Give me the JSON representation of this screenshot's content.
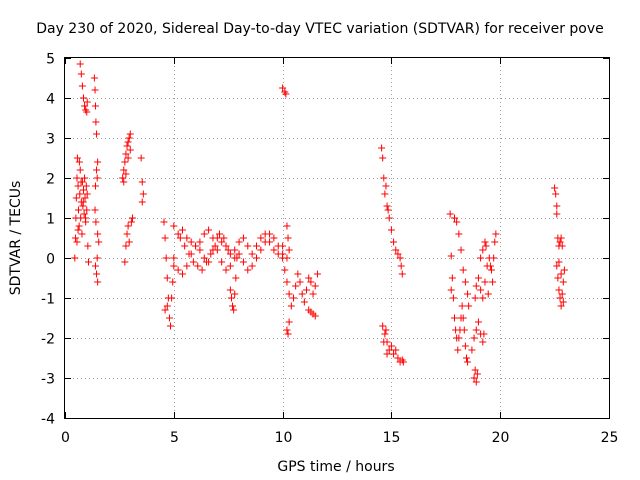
{
  "chart_data": {
    "type": "scatter",
    "title": "Day 230 of 2020, Sidereal Day-to-day VTEC variation (SDTVAR) for receiver pove",
    "xlabel": "GPS time / hours",
    "ylabel": "SDTVAR / TECUs",
    "xlim": [
      0,
      25
    ],
    "ylim": [
      -4,
      5
    ],
    "xticks": [
      0,
      5,
      10,
      15,
      20,
      25
    ],
    "yticks": [
      -4,
      -3,
      -2,
      -1,
      0,
      1,
      2,
      3,
      4,
      5
    ],
    "xtick_labels": [
      "0",
      "5",
      "10",
      "15",
      "20",
      "25"
    ],
    "ytick_labels": [
      "-4",
      "-3",
      "-2",
      "-1",
      "0",
      "1",
      "2",
      "3",
      "4",
      "5"
    ],
    "grid": true,
    "marker": "+",
    "marker_color": "#ff0000",
    "series": [
      {
        "name": "SDTVAR",
        "points": [
          [
            0.45,
            0.0
          ],
          [
            0.48,
            0.5
          ],
          [
            0.5,
            1.0
          ],
          [
            0.52,
            1.5
          ],
          [
            0.55,
            2.0
          ],
          [
            0.57,
            2.5
          ],
          [
            0.6,
            1.8
          ],
          [
            0.62,
            1.2
          ],
          [
            0.65,
            0.8
          ],
          [
            0.68,
            1.6
          ],
          [
            0.7,
            2.2
          ],
          [
            0.72,
            1.0
          ],
          [
            0.75,
            1.4
          ],
          [
            0.78,
            0.6
          ],
          [
            0.8,
            1.9
          ],
          [
            0.82,
            1.3
          ],
          [
            0.85,
            1.7
          ],
          [
            0.88,
            1.1
          ],
          [
            0.9,
            2.0
          ],
          [
            0.92,
            1.5
          ],
          [
            0.95,
            0.9
          ],
          [
            0.98,
            1.8
          ],
          [
            1.0,
            1.2
          ],
          [
            1.02,
            1.6
          ],
          [
            1.05,
            0.3
          ],
          [
            1.08,
            -0.1
          ],
          [
            0.55,
            0.4
          ],
          [
            0.6,
            0.7
          ],
          [
            0.66,
            2.4
          ],
          [
            0.74,
            1.9
          ],
          [
            0.84,
            1.4
          ],
          [
            0.94,
            1.0
          ],
          [
            0.7,
            4.85
          ],
          [
            0.75,
            4.6
          ],
          [
            0.8,
            4.3
          ],
          [
            0.85,
            4.0
          ],
          [
            0.9,
            3.8
          ],
          [
            0.95,
            3.7
          ],
          [
            1.0,
            3.65
          ],
          [
            1.02,
            3.9
          ],
          [
            1.35,
            4.5
          ],
          [
            1.38,
            4.2
          ],
          [
            1.4,
            3.8
          ],
          [
            1.42,
            3.4
          ],
          [
            1.45,
            3.1
          ],
          [
            1.5,
            2.4
          ],
          [
            1.45,
            2.2
          ],
          [
            1.48,
            2.0
          ],
          [
            1.4,
            1.8
          ],
          [
            1.38,
            1.2
          ],
          [
            1.42,
            0.9
          ],
          [
            1.5,
            0.6
          ],
          [
            1.55,
            0.4
          ],
          [
            1.4,
            -0.2
          ],
          [
            1.45,
            -0.4
          ],
          [
            1.5,
            -0.6
          ],
          [
            1.48,
            0.0
          ],
          [
            2.65,
            2.0
          ],
          [
            2.7,
            2.2
          ],
          [
            2.75,
            2.4
          ],
          [
            2.8,
            2.6
          ],
          [
            2.85,
            2.8
          ],
          [
            2.9,
            2.9
          ],
          [
            2.95,
            3.0
          ],
          [
            3.0,
            3.1
          ],
          [
            2.7,
            1.9
          ],
          [
            2.8,
            2.1
          ],
          [
            2.9,
            2.5
          ],
          [
            3.0,
            2.7
          ],
          [
            2.75,
            -0.1
          ],
          [
            2.8,
            0.3
          ],
          [
            2.85,
            0.6
          ],
          [
            2.9,
            0.8
          ],
          [
            2.95,
            0.4
          ],
          [
            3.1,
            1.0
          ],
          [
            3.05,
            0.9
          ],
          [
            3.5,
            2.5
          ],
          [
            3.55,
            1.9
          ],
          [
            3.6,
            1.6
          ],
          [
            3.55,
            1.4
          ],
          [
            10.0,
            4.25
          ],
          [
            10.1,
            4.15
          ],
          [
            10.15,
            4.1
          ],
          [
            4.55,
            0.9
          ],
          [
            4.6,
            0.5
          ],
          [
            4.65,
            0.0
          ],
          [
            4.7,
            -0.5
          ],
          [
            4.75,
            -1.0
          ],
          [
            4.8,
            -1.5
          ],
          [
            4.85,
            -1.7
          ],
          [
            4.9,
            -1.0
          ],
          [
            4.95,
            -0.6
          ],
          [
            5.0,
            -0.2
          ],
          [
            4.6,
            -1.3
          ],
          [
            4.7,
            -1.2
          ],
          [
            5.0,
            0.8
          ],
          [
            5.2,
            0.6
          ],
          [
            5.4,
            0.7
          ],
          [
            5.6,
            0.5
          ],
          [
            5.8,
            0.4
          ],
          [
            6.0,
            0.3
          ],
          [
            6.2,
            0.2
          ],
          [
            6.4,
            0.0
          ],
          [
            6.6,
            -0.1
          ],
          [
            6.8,
            0.2
          ],
          [
            7.0,
            0.5
          ],
          [
            7.2,
            0.4
          ],
          [
            7.4,
            0.3
          ],
          [
            7.6,
            0.1
          ],
          [
            7.8,
            0.2
          ],
          [
            8.0,
            0.4
          ],
          [
            8.2,
            0.5
          ],
          [
            8.4,
            0.3
          ],
          [
            8.6,
            0.1
          ],
          [
            8.8,
            0.3
          ],
          [
            9.0,
            0.5
          ],
          [
            9.2,
            0.6
          ],
          [
            9.4,
            0.4
          ],
          [
            9.6,
            0.2
          ],
          [
            9.8,
            0.1
          ],
          [
            10.0,
            0.3
          ],
          [
            10.2,
            0.0
          ],
          [
            5.0,
            0.0
          ],
          [
            5.2,
            -0.3
          ],
          [
            5.4,
            -0.4
          ],
          [
            5.6,
            -0.2
          ],
          [
            5.8,
            0.1
          ],
          [
            6.0,
            0.3
          ],
          [
            6.2,
            0.4
          ],
          [
            6.4,
            0.6
          ],
          [
            6.6,
            0.7
          ],
          [
            6.8,
            0.5
          ],
          [
            7.0,
            0.2
          ],
          [
            7.2,
            -0.1
          ],
          [
            7.4,
            -0.3
          ],
          [
            7.6,
            -0.2
          ],
          [
            7.8,
            0.0
          ],
          [
            8.0,
            0.1
          ],
          [
            8.2,
            -0.1
          ],
          [
            8.4,
            -0.3
          ],
          [
            8.6,
            -0.2
          ],
          [
            8.8,
            0.0
          ],
          [
            9.0,
            0.2
          ],
          [
            9.2,
            0.4
          ],
          [
            9.4,
            0.6
          ],
          [
            9.6,
            0.5
          ],
          [
            9.8,
            0.3
          ],
          [
            10.0,
            0.1
          ],
          [
            5.3,
            0.5
          ],
          [
            5.5,
            0.3
          ],
          [
            5.7,
            0.1
          ],
          [
            5.9,
            -0.1
          ],
          [
            6.1,
            -0.2
          ],
          [
            6.3,
            -0.3
          ],
          [
            6.5,
            -0.1
          ],
          [
            6.7,
            0.1
          ],
          [
            6.9,
            0.3
          ],
          [
            7.1,
            0.6
          ],
          [
            7.3,
            0.5
          ],
          [
            7.5,
            0.2
          ],
          [
            7.6,
            -0.8
          ],
          [
            7.65,
            -1.0
          ],
          [
            7.7,
            -1.2
          ],
          [
            7.75,
            -1.3
          ],
          [
            7.8,
            -0.9
          ],
          [
            7.85,
            -0.5
          ],
          [
            7.9,
            0.0
          ],
          [
            10.0,
            0.0
          ],
          [
            10.1,
            -0.3
          ],
          [
            10.2,
            -0.6
          ],
          [
            10.3,
            -0.9
          ],
          [
            10.4,
            -1.2
          ],
          [
            10.5,
            -1.0
          ],
          [
            10.6,
            -0.7
          ],
          [
            10.7,
            -0.4
          ],
          [
            10.8,
            -0.6
          ],
          [
            10.9,
            -0.9
          ],
          [
            11.0,
            -1.1
          ],
          [
            11.1,
            -0.8
          ],
          [
            11.2,
            -0.5
          ],
          [
            11.3,
            -0.6
          ],
          [
            11.4,
            -0.9
          ],
          [
            11.5,
            -0.7
          ],
          [
            11.6,
            -0.4
          ],
          [
            10.2,
            0.8
          ],
          [
            10.25,
            0.5
          ],
          [
            10.3,
            0.2
          ],
          [
            10.2,
            -1.8
          ],
          [
            10.25,
            -1.9
          ],
          [
            10.3,
            -1.6
          ],
          [
            11.2,
            -1.3
          ],
          [
            11.4,
            -1.4
          ],
          [
            11.5,
            -1.45
          ],
          [
            11.3,
            -1.35
          ],
          [
            14.55,
            2.75
          ],
          [
            14.6,
            2.5
          ],
          [
            14.65,
            2.0
          ],
          [
            14.7,
            1.6
          ],
          [
            14.8,
            1.3
          ],
          [
            14.9,
            1.0
          ],
          [
            15.0,
            0.7
          ],
          [
            15.1,
            0.4
          ],
          [
            15.2,
            0.2
          ],
          [
            15.3,
            0.1
          ],
          [
            15.4,
            0.0
          ],
          [
            15.45,
            -0.2
          ],
          [
            15.5,
            -0.4
          ],
          [
            14.75,
            1.8
          ],
          [
            14.85,
            1.2
          ],
          [
            14.6,
            -1.7
          ],
          [
            14.7,
            -1.9
          ],
          [
            14.8,
            -2.1
          ],
          [
            14.9,
            -2.3
          ],
          [
            15.0,
            -2.2
          ],
          [
            15.1,
            -2.4
          ],
          [
            15.2,
            -2.3
          ],
          [
            15.3,
            -2.5
          ],
          [
            15.4,
            -2.6
          ],
          [
            15.5,
            -2.55
          ],
          [
            15.55,
            -2.6
          ],
          [
            14.65,
            -2.1
          ],
          [
            14.8,
            -2.4
          ],
          [
            14.75,
            -1.8
          ],
          [
            17.7,
            1.1
          ],
          [
            17.75,
            0.05
          ],
          [
            17.8,
            -0.5
          ],
          [
            17.75,
            -0.8
          ],
          [
            17.85,
            -1.0
          ],
          [
            17.9,
            -1.5
          ],
          [
            17.95,
            -1.8
          ],
          [
            18.0,
            -2.0
          ],
          [
            18.05,
            -2.3
          ],
          [
            18.1,
            -2.0
          ],
          [
            18.15,
            -1.8
          ],
          [
            18.2,
            -1.5
          ],
          [
            18.25,
            -1.2
          ],
          [
            18.3,
            -1.5
          ],
          [
            18.35,
            -1.8
          ],
          [
            18.4,
            -2.2
          ],
          [
            18.45,
            -2.5
          ],
          [
            18.5,
            -2.6
          ],
          [
            17.9,
            1.0
          ],
          [
            18.0,
            0.9
          ],
          [
            18.1,
            0.6
          ],
          [
            18.2,
            0.2
          ],
          [
            18.3,
            -0.3
          ],
          [
            18.4,
            -0.6
          ],
          [
            18.5,
            -0.9
          ],
          [
            18.55,
            -1.2
          ],
          [
            18.8,
            -3.0
          ],
          [
            18.85,
            -2.8
          ],
          [
            18.9,
            -3.1
          ],
          [
            18.95,
            -2.9
          ],
          [
            18.7,
            -2.3
          ],
          [
            18.8,
            -2.0
          ],
          [
            18.9,
            -1.8
          ],
          [
            19.0,
            -1.6
          ],
          [
            19.1,
            -1.9
          ],
          [
            19.2,
            -2.1
          ],
          [
            19.25,
            -1.9
          ],
          [
            18.85,
            -1.0
          ],
          [
            18.9,
            -0.7
          ],
          [
            19.0,
            -0.5
          ],
          [
            19.1,
            -0.8
          ],
          [
            19.2,
            -1.0
          ],
          [
            19.3,
            -0.6
          ],
          [
            19.4,
            -0.2
          ],
          [
            19.5,
            0.0
          ],
          [
            19.2,
            0.2
          ],
          [
            19.3,
            0.4
          ],
          [
            19.1,
            0.0
          ],
          [
            19.35,
            0.3
          ],
          [
            19.6,
            -0.3
          ],
          [
            19.65,
            -0.6
          ],
          [
            19.7,
            0.0
          ],
          [
            19.75,
            0.4
          ],
          [
            19.8,
            0.6
          ],
          [
            19.55,
            -0.2
          ],
          [
            19.45,
            -0.9
          ],
          [
            22.5,
            1.75
          ],
          [
            22.55,
            1.6
          ],
          [
            22.6,
            1.3
          ],
          [
            22.6,
            1.1
          ],
          [
            22.65,
            0.5
          ],
          [
            22.7,
            0.3
          ],
          [
            22.75,
            0.4
          ],
          [
            22.8,
            0.5
          ],
          [
            22.85,
            0.3
          ],
          [
            22.6,
            -0.2
          ],
          [
            22.65,
            -0.5
          ],
          [
            22.7,
            -0.8
          ],
          [
            22.75,
            -1.0
          ],
          [
            22.8,
            -1.2
          ],
          [
            22.85,
            -0.9
          ],
          [
            22.9,
            -0.6
          ],
          [
            22.95,
            -0.3
          ],
          [
            22.7,
            -0.1
          ],
          [
            22.8,
            -0.4
          ],
          [
            22.9,
            -1.1
          ]
        ]
      }
    ]
  }
}
